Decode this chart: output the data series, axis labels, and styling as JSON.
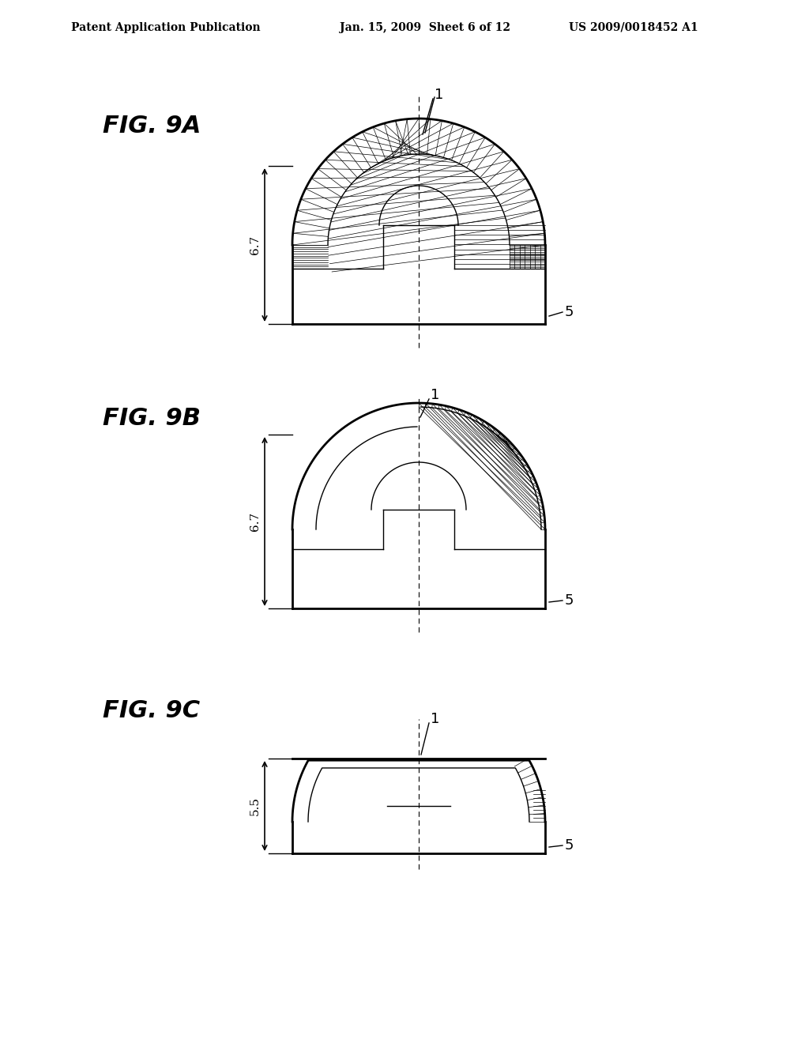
{
  "header_left": "Patent Application Publication",
  "header_center": "Jan. 15, 2009  Sheet 6 of 12",
  "header_right": "US 2009/0018452 A1",
  "fig_labels": [
    "FIG. 9A",
    "FIG. 9B",
    "FIG. 9C"
  ],
  "dim_labels_9AB": "6.7",
  "dim_label_9C": "5.5",
  "ref_num_1": "1",
  "ref_num_5": "5",
  "bg_color": "#ffffff",
  "line_color": "#000000"
}
